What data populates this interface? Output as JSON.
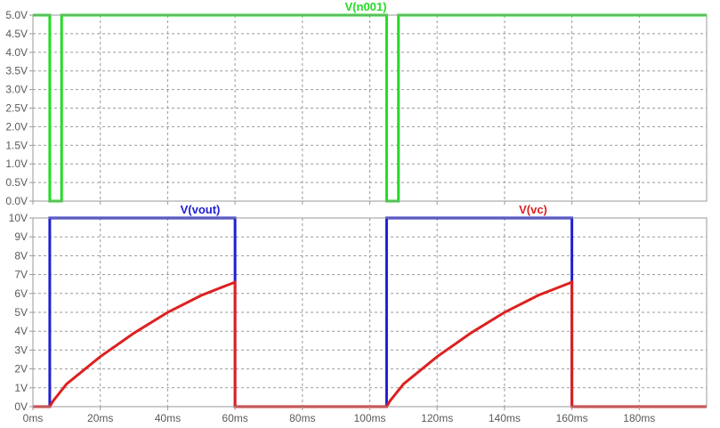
{
  "chart_data": [
    {
      "type": "line",
      "title": "V(n001)",
      "xlim": [
        0,
        200
      ],
      "ylim": [
        0,
        5
      ],
      "x_ticks": [
        "0ms",
        "20ms",
        "40ms",
        "60ms",
        "80ms",
        "100ms",
        "120ms",
        "140ms",
        "160ms",
        "180ms"
      ],
      "y_ticks": [
        "0.0V",
        "0.5V",
        "1.0V",
        "1.5V",
        "2.0V",
        "2.5V",
        "3.0V",
        "3.5V",
        "4.0V",
        "4.5V",
        "5.0V"
      ],
      "grid": true,
      "series": [
        {
          "name": "V(n001)",
          "color": "#22dd22",
          "x": [
            0,
            5,
            5,
            8.5,
            8.5,
            105,
            105,
            108.5,
            108.5,
            200
          ],
          "y": [
            5,
            5,
            0,
            0,
            5,
            5,
            0,
            0,
            5,
            5
          ]
        }
      ]
    },
    {
      "type": "line",
      "xlim": [
        0,
        200
      ],
      "ylim": [
        0,
        10
      ],
      "x_ticks": [
        "0ms",
        "20ms",
        "40ms",
        "60ms",
        "80ms",
        "100ms",
        "120ms",
        "140ms",
        "160ms",
        "180ms"
      ],
      "y_ticks": [
        "0V",
        "1V",
        "2V",
        "3V",
        "4V",
        "5V",
        "6V",
        "7V",
        "8V",
        "9V",
        "10V"
      ],
      "grid": true,
      "series": [
        {
          "name": "V(vout)",
          "color": "#2020d0",
          "x": [
            0,
            5,
            5,
            60,
            60,
            105,
            105,
            160,
            160,
            200
          ],
          "y": [
            0,
            0,
            10,
            10,
            0,
            0,
            10,
            10,
            0,
            0
          ]
        },
        {
          "name": "V(vc)",
          "color": "#dd2020",
          "x": [
            0,
            5,
            6,
            10,
            20,
            30,
            40,
            50,
            60,
            60,
            105,
            106,
            110,
            120,
            130,
            140,
            150,
            160,
            160,
            200
          ],
          "y": [
            0,
            0,
            0.3,
            1.2,
            2.65,
            3.9,
            5.0,
            5.9,
            6.6,
            0,
            0,
            0.3,
            1.2,
            2.65,
            3.9,
            5.0,
            5.9,
            6.6,
            0,
            0
          ]
        }
      ]
    }
  ]
}
